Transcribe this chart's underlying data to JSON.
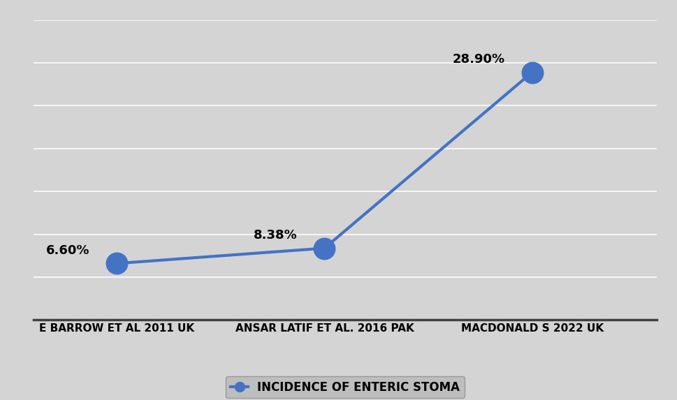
{
  "categories": [
    "E BARROW ET AL 2011 UK",
    "ANSAR LATIF ET AL. 2016 PAK",
    "MACDONALD S 2022 UK"
  ],
  "values": [
    6.6,
    8.38,
    28.9
  ],
  "labels": [
    "6.60%",
    "8.38%",
    "28.90%"
  ],
  "line_color": "#4472C4",
  "marker_color": "#4472C4",
  "marker_size": 22,
  "line_width": 3.0,
  "legend_label": "INCIDENCE OF ENTERIC STOMA",
  "background_color": "#D4D4D4",
  "plot_background_color": "#D4D4D4",
  "grid_color": "#FFFFFF",
  "axis_color": "#404040",
  "label_fontsize": 13,
  "tick_fontsize": 11,
  "legend_fontsize": 12,
  "ylim": [
    0,
    35
  ],
  "xlim": [
    -0.4,
    2.6
  ],
  "figsize": [
    9.69,
    5.73
  ],
  "dpi": 100
}
